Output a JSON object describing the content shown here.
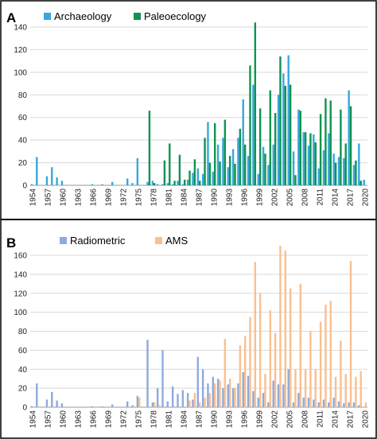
{
  "chart_data": [
    {
      "type": "bar",
      "panel_label": "A",
      "ylim": [
        0,
        140
      ],
      "yticks": [
        0,
        20,
        40,
        60,
        80,
        100,
        120,
        140
      ],
      "x": [
        1954,
        1955,
        1956,
        1957,
        1958,
        1959,
        1960,
        1961,
        1962,
        1963,
        1964,
        1965,
        1966,
        1967,
        1968,
        1969,
        1970,
        1971,
        1972,
        1973,
        1974,
        1975,
        1976,
        1977,
        1978,
        1979,
        1980,
        1981,
        1982,
        1983,
        1984,
        1985,
        1986,
        1987,
        1988,
        1989,
        1990,
        1991,
        1992,
        1993,
        1994,
        1995,
        1996,
        1997,
        1998,
        1999,
        2000,
        2001,
        2002,
        2003,
        2004,
        2005,
        2006,
        2007,
        2008,
        2009,
        2010,
        2011,
        2012,
        2013,
        2014,
        2015,
        2016,
        2017,
        2018,
        2019,
        2020
      ],
      "xtick_labels": [
        "1954",
        "1957",
        "1960",
        "1963",
        "1966",
        "1969",
        "1972",
        "1975",
        "1978",
        "1981",
        "1984",
        "1987",
        "1990",
        "1993",
        "1996",
        "1999",
        "2002",
        "2005",
        "2008",
        "2011",
        "2014",
        "2017",
        "2020"
      ],
      "legend_position": "top-left",
      "series": [
        {
          "name": "Archaeology",
          "color": "#3aa6dd",
          "values": [
            1,
            25,
            0,
            8,
            16,
            7,
            4,
            0,
            0,
            0,
            0,
            0,
            1,
            0,
            1,
            0,
            3,
            0,
            0,
            6,
            2,
            24,
            0,
            3,
            4,
            1,
            1,
            2,
            1,
            4,
            1,
            5,
            11,
            15,
            10,
            56,
            12,
            36,
            42,
            16,
            32,
            42,
            76,
            26,
            89,
            10,
            34,
            18,
            36,
            80,
            99,
            115,
            30,
            67,
            47,
            35,
            45,
            15,
            31,
            46,
            28,
            25,
            24,
            84,
            18,
            37,
            5
          ]
        },
        {
          "name": "Paleoecology",
          "color": "#0e9450",
          "values": [
            0,
            0,
            0,
            0,
            0,
            0,
            0,
            0,
            0,
            0,
            0,
            0,
            0,
            0,
            0,
            0,
            0,
            0,
            0,
            0,
            0,
            0,
            0,
            66,
            2,
            0,
            22,
            37,
            4,
            27,
            5,
            13,
            23,
            4,
            42,
            20,
            55,
            21,
            58,
            26,
            19,
            50,
            36,
            106,
            144,
            68,
            28,
            84,
            64,
            114,
            88,
            89,
            9,
            66,
            47,
            46,
            38,
            63,
            77,
            75,
            20,
            67,
            37,
            70,
            22,
            4,
            0
          ]
        }
      ]
    },
    {
      "type": "bar",
      "panel_label": "B",
      "ylim": [
        0,
        160
      ],
      "yticks": [
        0,
        20,
        40,
        60,
        80,
        100,
        120,
        140,
        160
      ],
      "x": [
        1954,
        1955,
        1956,
        1957,
        1958,
        1959,
        1960,
        1961,
        1962,
        1963,
        1964,
        1965,
        1966,
        1967,
        1968,
        1969,
        1970,
        1971,
        1972,
        1973,
        1974,
        1975,
        1976,
        1977,
        1978,
        1979,
        1980,
        1981,
        1982,
        1983,
        1984,
        1985,
        1986,
        1987,
        1988,
        1989,
        1990,
        1991,
        1992,
        1993,
        1994,
        1995,
        1996,
        1997,
        1998,
        1999,
        2000,
        2001,
        2002,
        2003,
        2004,
        2005,
        2006,
        2007,
        2008,
        2009,
        2010,
        2011,
        2012,
        2013,
        2014,
        2015,
        2016,
        2017,
        2018,
        2019,
        2020
      ],
      "xtick_labels": [
        "1954",
        "1957",
        "1960",
        "1963",
        "1966",
        "1969",
        "1972",
        "1975",
        "1978",
        "1981",
        "1984",
        "1987",
        "1990",
        "1993",
        "1996",
        "1999",
        "2002",
        "2005",
        "2008",
        "2011",
        "2014",
        "2017",
        "2020"
      ],
      "legend_position": "top-left",
      "series": [
        {
          "name": "Radiometric",
          "color": "#8faadc",
          "values": [
            1,
            25,
            0,
            8,
            16,
            7,
            4,
            0,
            0,
            0,
            0,
            0,
            1,
            0,
            1,
            0,
            3,
            0,
            0,
            6,
            2,
            12,
            0,
            71,
            5,
            20,
            60,
            6,
            22,
            14,
            18,
            15,
            8,
            53,
            40,
            25,
            32,
            30,
            20,
            24,
            20,
            25,
            37,
            33,
            17,
            10,
            15,
            5,
            28,
            24,
            24,
            40,
            5,
            15,
            10,
            10,
            8,
            5,
            8,
            5,
            10,
            6,
            4,
            5,
            5,
            2,
            0
          ]
        },
        {
          "name": "AMS",
          "color": "#f9c08f",
          "values": [
            0,
            0,
            0,
            0,
            0,
            0,
            0,
            0,
            0,
            0,
            0,
            0,
            0,
            0,
            0,
            0,
            0,
            0,
            0,
            0,
            0,
            10,
            0,
            0,
            5,
            2,
            0,
            0,
            0,
            0,
            0,
            7,
            15,
            5,
            10,
            15,
            25,
            28,
            72,
            30,
            20,
            65,
            75,
            95,
            153,
            120,
            35,
            102,
            78,
            170,
            165,
            125,
            40,
            130,
            40,
            80,
            40,
            90,
            108,
            112,
            32,
            70,
            35,
            154,
            32,
            38,
            5
          ]
        }
      ]
    }
  ]
}
